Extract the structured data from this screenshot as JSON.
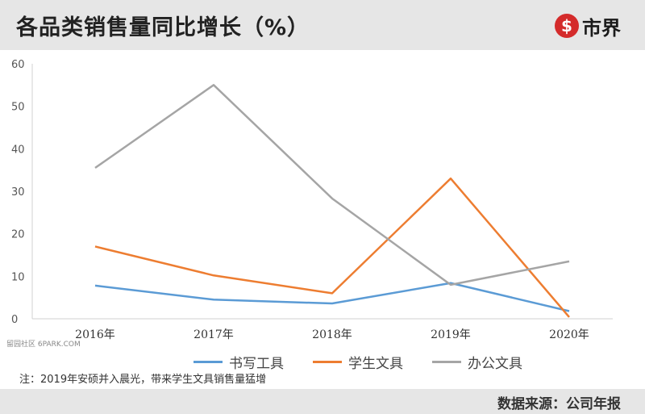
{
  "title": "各品类销售量同比增长（%）",
  "logo": {
    "icon_name": "shijie-logo-icon",
    "text": "市界"
  },
  "note": "注：2019年安硕并入晨光，带来学生文具销售量猛增",
  "source": "数据来源：公司年报",
  "side_watermark": "留园社区 6PARK.COM",
  "colors": {
    "series_1": "#5b9bd5",
    "series_2": "#ed7d31",
    "series_3": "#a5a5a5",
    "header_band": "#e6e6e6",
    "logo_red": "#d42b2b"
  },
  "chart_data": {
    "type": "line",
    "categories": [
      "2016年",
      "2017年",
      "2018年",
      "2019年",
      "2020年"
    ],
    "ylim": [
      0,
      60
    ],
    "yticks": [
      0,
      10,
      20,
      30,
      40,
      50,
      60
    ],
    "grid": false,
    "legend_position": "bottom",
    "series": [
      {
        "name": "书写工具",
        "values": [
          7.8,
          4.5,
          3.6,
          8.4,
          1.8
        ]
      },
      {
        "name": "学生文具",
        "values": [
          17.0,
          10.2,
          6.0,
          33.0,
          0.4
        ]
      },
      {
        "name": "办公文具",
        "values": [
          35.5,
          55.0,
          28.3,
          8.0,
          13.5
        ]
      }
    ]
  }
}
